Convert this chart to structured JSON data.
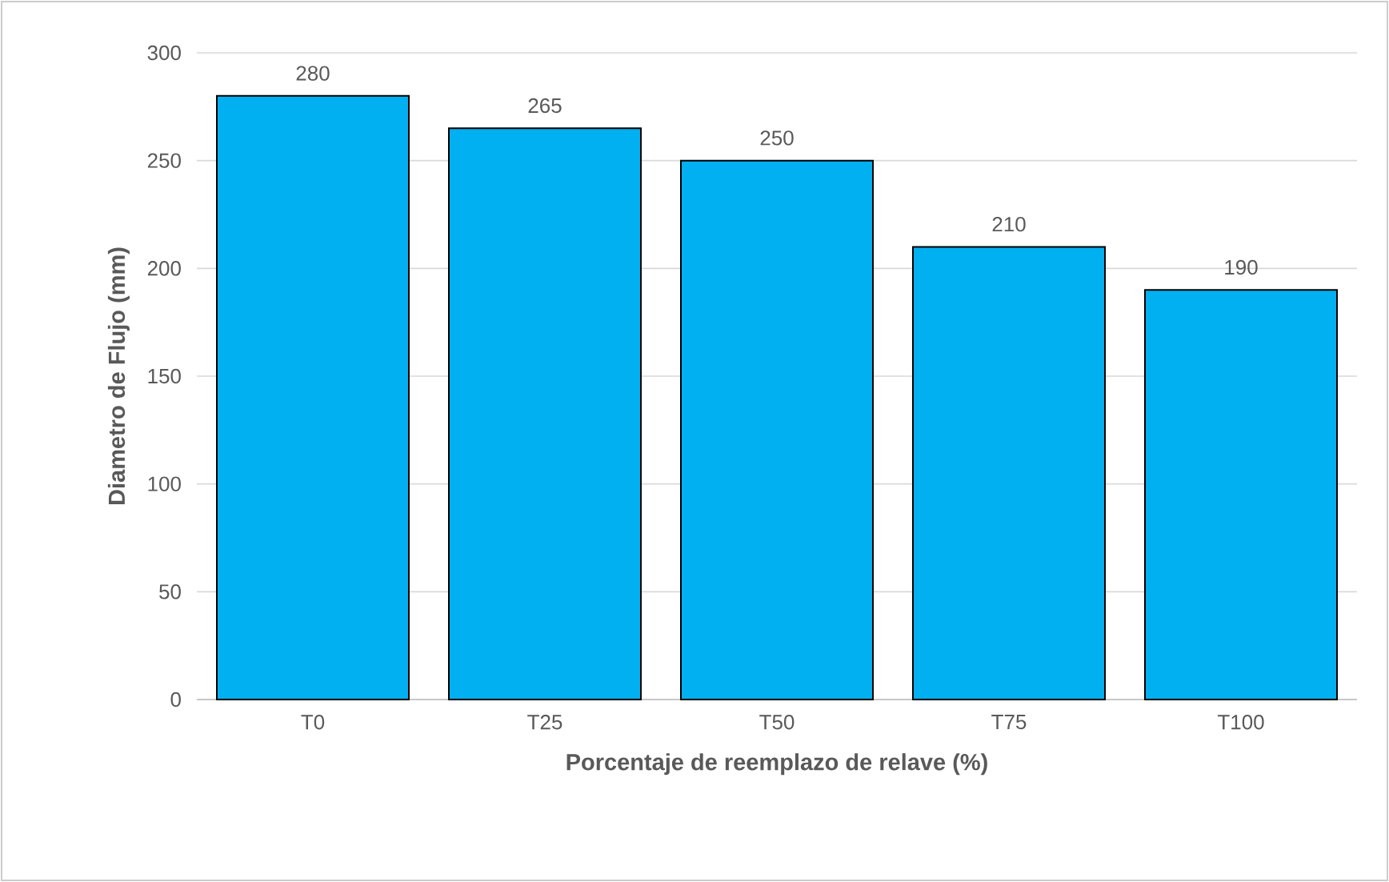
{
  "chart_data": {
    "type": "bar",
    "xlabel": "Porcentaje de reemplazo de relave (%)",
    "ylabel": "Diametro de Flujo (mm)",
    "categories": [
      "T0",
      "T25",
      "T50",
      "T75",
      "T100"
    ],
    "values": [
      280,
      265,
      250,
      210,
      190
    ],
    "color": "#00b0f0",
    "ylim": [
      0,
      300
    ],
    "yticks": [
      0,
      50,
      100,
      150,
      200,
      250,
      300
    ],
    "grid": "y",
    "data_labels": true
  }
}
